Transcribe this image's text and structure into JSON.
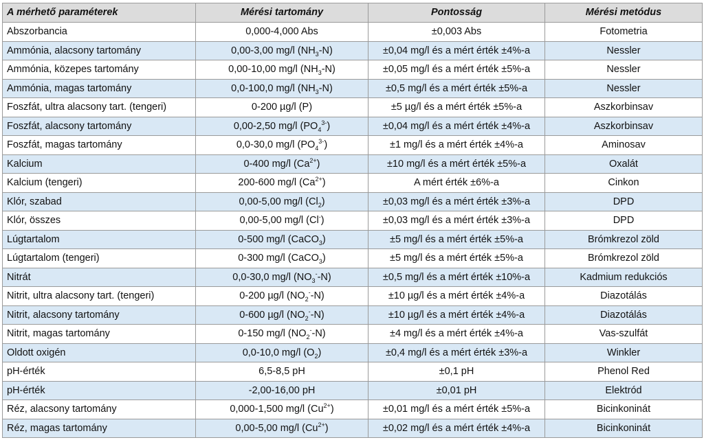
{
  "headers": [
    "A mérhető paraméterek",
    "Mérési tartomány",
    "Pontosság",
    "Mérési metódus"
  ],
  "rows": [
    {
      "param": "Abszorbancia",
      "range": "0,000-4,000 Abs",
      "accuracy": "±0,003 Abs",
      "method": "Fotometria"
    },
    {
      "param": "Ammónia, alacsony tartomány",
      "range": [
        "0,00-3,00 mg/l (NH",
        {
          "sub": "3"
        },
        "-N)"
      ],
      "accuracy": "±0,04 mg/l és a mért érték ±4%-a",
      "method": "Nessler"
    },
    {
      "param": "Ammónia, közepes tartomány",
      "range": [
        "0,00-10,00 mg/l (NH",
        {
          "sub": "3"
        },
        "-N)"
      ],
      "accuracy": "±0,05 mg/l és a mért érték ±5%-a",
      "method": "Nessler"
    },
    {
      "param": "Ammónia, magas tartomány",
      "range": [
        "0,0-100,0 mg/l (NH",
        {
          "sub": "3"
        },
        "-N)"
      ],
      "accuracy": "±0,5 mg/l és a mért érték ±5%-a",
      "method": "Nessler"
    },
    {
      "param": "Foszfát, ultra alacsony tart. (tengeri)",
      "range": "0-200 µg/l (P)",
      "accuracy": "±5 µg/l és a mért érték ±5%-a",
      "method": "Aszkorbinsav"
    },
    {
      "param": "Foszfát, alacsony tartomány",
      "range": [
        "0,00-2,50 mg/l (PO",
        {
          "sub": "4"
        },
        {
          "sup": "3-"
        },
        ")"
      ],
      "accuracy": "±0,04 mg/l és a mért érték ±4%-a",
      "method": "Aszkorbinsav"
    },
    {
      "param": "Foszfát, magas tartomány",
      "range": [
        "0,0-30,0 mg/l (PO",
        {
          "sub": "4"
        },
        {
          "sup": "3-"
        },
        ")"
      ],
      "accuracy": "±1 mg/l és a mért érték ±4%-a",
      "method": "Aminosav"
    },
    {
      "param": "Kalcium",
      "range": [
        "0-400 mg/l (Ca",
        {
          "sup": "2+"
        },
        ")"
      ],
      "accuracy": "±10 mg/l és a mért érték ±5%-a",
      "method": "Oxalát"
    },
    {
      "param": "Kalcium (tengeri)",
      "range": [
        "200-600 mg/l (Ca",
        {
          "sup": "2+"
        },
        ")"
      ],
      "accuracy": "A mért érték ±6%-a",
      "method": "Cinkon"
    },
    {
      "param": "Klór, szabad",
      "range": [
        "0,00-5,00 mg/l (Cl",
        {
          "sub": "2"
        },
        ")"
      ],
      "accuracy": "±0,03 mg/l és a mért érték ±3%-a",
      "method": "DPD"
    },
    {
      "param": "Klór, összes",
      "range": [
        "0,00-5,00 mg/l (Cl",
        {
          "sup": "-"
        },
        ")"
      ],
      "accuracy": "±0,03 mg/l és a mért érték ±3%-a",
      "method": "DPD"
    },
    {
      "param": "Lúgtartalom",
      "range": [
        "0-500 mg/l (CaCO",
        {
          "sub": "3"
        },
        ")"
      ],
      "accuracy": "±5 mg/l és a mért érték ±5%-a",
      "method": "Brómkrezol zöld"
    },
    {
      "param": "Lúgtartalom (tengeri)",
      "range": [
        "0-300 mg/l (CaCO",
        {
          "sub": "3"
        },
        ")"
      ],
      "accuracy": "±5 mg/l és a mért érték ±5%-a",
      "method": "Brómkrezol zöld"
    },
    {
      "param": "Nitrát",
      "range": [
        "0,0-30,0 mg/l (NO",
        {
          "sub": "3"
        },
        {
          "sup": "-"
        },
        "-N)"
      ],
      "accuracy": "±0,5 mg/l és a mért érték ±10%-a",
      "method": "Kadmium redukciós"
    },
    {
      "param": "Nitrit, ultra alacsony tart. (tengeri)",
      "range": [
        "0-200 µg/l (NO",
        {
          "sub": "2"
        },
        {
          "sup": "-"
        },
        "-N)"
      ],
      "accuracy": "±10 µg/l és a mért érték ±4%-a",
      "method": "Diazotálás"
    },
    {
      "param": "Nitrit, alacsony tartomány",
      "range": [
        "0-600 µg/l (NO",
        {
          "sub": "2"
        },
        {
          "sup": "-"
        },
        "-N)"
      ],
      "accuracy": "±10 µg/l és a mért érték ±4%-a",
      "method": "Diazotálás"
    },
    {
      "param": "Nitrit, magas tartomány",
      "range": [
        "0-150 mg/l (NO",
        {
          "sub": "2"
        },
        {
          "sup": "-"
        },
        "-N)"
      ],
      "accuracy": "±4 mg/l és a mért érték ±4%-a",
      "method": "Vas-szulfát"
    },
    {
      "param": "Oldott oxigén",
      "range": [
        "0,0-10,0 mg/l (O",
        {
          "sub": "2"
        },
        ")"
      ],
      "accuracy": "±0,4 mg/l és a mért érték ±3%-a",
      "method": "Winkler"
    },
    {
      "param": "pH-érték",
      "range": "6,5-8,5 pH",
      "accuracy": "±0,1 pH",
      "method": "Phenol Red"
    },
    {
      "param": "pH-érték",
      "range": "-2,00-16,00 pH",
      "accuracy": "±0,01 pH",
      "method": "Elektród"
    },
    {
      "param": "Réz, alacsony tartomány",
      "range": [
        "0,000-1,500 mg/l (Cu",
        {
          "sup": "2+"
        },
        ")"
      ],
      "accuracy": "±0,01 mg/l és a mért érték ±5%-a",
      "method": "Bicinkoninát"
    },
    {
      "param": "Réz, magas tartomány",
      "range": [
        "0,00-5,00 mg/l (Cu",
        {
          "sup": "2+"
        },
        ")"
      ],
      "accuracy": "±0,02 mg/l és a mért érték ±4%-a",
      "method": "Bicinkoninát"
    }
  ],
  "colors": {
    "header_bg": "#dcdcdc",
    "shaded_row_bg": "#d9e8f5",
    "border": "#9a9a9a"
  }
}
